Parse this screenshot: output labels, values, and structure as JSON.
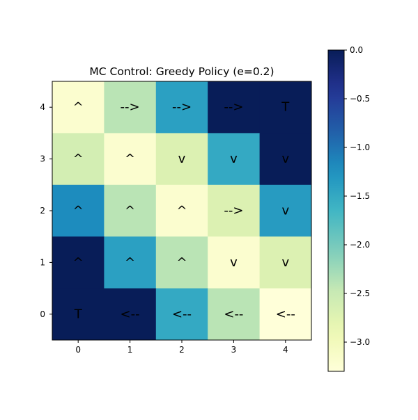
{
  "chart_data": {
    "type": "heatmap",
    "title": "MC Control: Greedy Policy (e=0.2)",
    "xlabel": "",
    "ylabel": "",
    "x_ticks": [
      "0",
      "1",
      "2",
      "3",
      "4"
    ],
    "y_ticks": [
      "0",
      "1",
      "2",
      "3",
      "4"
    ],
    "grid": false,
    "colormap": "YlGnBu",
    "color_range": [
      -3.3,
      0.0
    ],
    "colorbar": {
      "range": [
        -3.3,
        0.0
      ],
      "ticks": [
        "0.0",
        "−0.5",
        "−1.0",
        "−1.5",
        "−2.0",
        "−2.5",
        "−3.0"
      ],
      "tick_values": [
        0.0,
        -0.5,
        -1.0,
        -1.5,
        -2.0,
        -2.5,
        -3.0
      ],
      "placement": "right"
    },
    "rows_top_to_bottom": [
      {
        "y": "4",
        "values": [
          -3.2,
          -2.4,
          -1.4,
          0.0,
          0.0
        ],
        "arrows": [
          "^",
          "-->",
          "-->",
          "-->",
          "T"
        ]
      },
      {
        "y": "3",
        "values": [
          -2.6,
          -3.2,
          -2.7,
          -1.5,
          0.0
        ],
        "arrows": [
          "^",
          "^",
          "v",
          "v",
          "v"
        ]
      },
      {
        "y": "2",
        "values": [
          -1.2,
          -2.4,
          -3.2,
          -2.7,
          -1.35
        ],
        "arrows": [
          "^",
          "^",
          "^",
          "-->",
          "v"
        ]
      },
      {
        "y": "1",
        "values": [
          0.0,
          -1.4,
          -2.4,
          -3.2,
          -2.7
        ],
        "arrows": [
          "^",
          "^",
          "^",
          "v",
          "v"
        ]
      },
      {
        "y": "0",
        "values": [
          0.0,
          0.0,
          -1.5,
          -2.4,
          -3.3
        ],
        "arrows": [
          "T",
          "<--",
          "<--",
          "<--",
          "<--"
        ]
      }
    ]
  }
}
